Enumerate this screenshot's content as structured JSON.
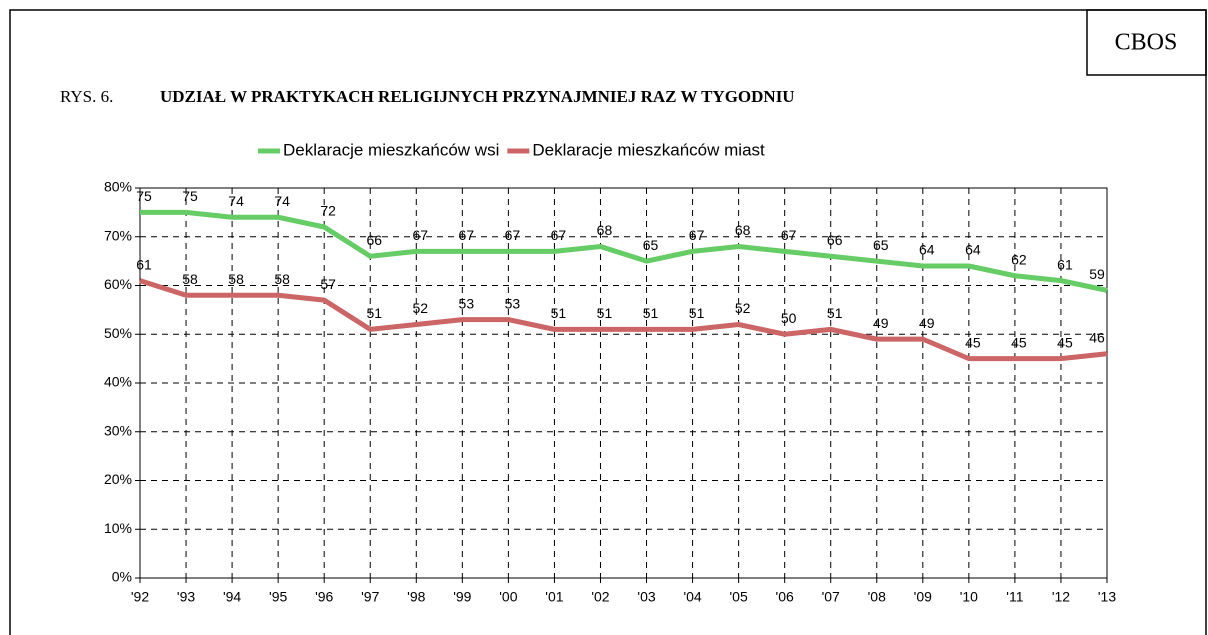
{
  "chart_data": {
    "type": "line",
    "source": "CBOS",
    "figure_label": "RYS. 6.",
    "title": "UDZIAŁ W PRAKTYKACH RELIGIJNYCH PRZYNAJMNIEJ RAZ W TYGODNIU",
    "categories": [
      "'92",
      "'93",
      "'94",
      "'95",
      "'96",
      "'97",
      "'98",
      "'99",
      "'00",
      "'01",
      "'02",
      "'03",
      "'04",
      "'05",
      "'06",
      "'07",
      "'08",
      "'09",
      "'10",
      "'11",
      "'12",
      "'13"
    ],
    "series": [
      {
        "name": "Deklaracje mieszkańców wsi",
        "color": "#66cc66",
        "values": [
          75,
          75,
          74,
          74,
          72,
          66,
          67,
          67,
          67,
          67,
          68,
          65,
          67,
          68,
          67,
          66,
          65,
          64,
          64,
          62,
          61,
          59
        ]
      },
      {
        "name": "Deklaracje mieszkańców miast",
        "color": "#cc6666",
        "values": [
          61,
          58,
          58,
          58,
          57,
          51,
          52,
          53,
          53,
          51,
          51,
          51,
          51,
          52,
          50,
          51,
          49,
          49,
          45,
          45,
          45,
          46
        ]
      }
    ],
    "ylim": [
      0,
      80
    ],
    "yticks": [
      {
        "value": 0,
        "label": "0%"
      },
      {
        "value": 10,
        "label": "10%"
      },
      {
        "value": 20,
        "label": "20%"
      },
      {
        "value": 30,
        "label": "30%"
      },
      {
        "value": 40,
        "label": "40%"
      },
      {
        "value": 50,
        "label": "50%"
      },
      {
        "value": 60,
        "label": "60%"
      },
      {
        "value": 70,
        "label": "70%"
      },
      {
        "value": 80,
        "label": "80%"
      }
    ],
    "grid": true,
    "legend": "top"
  }
}
